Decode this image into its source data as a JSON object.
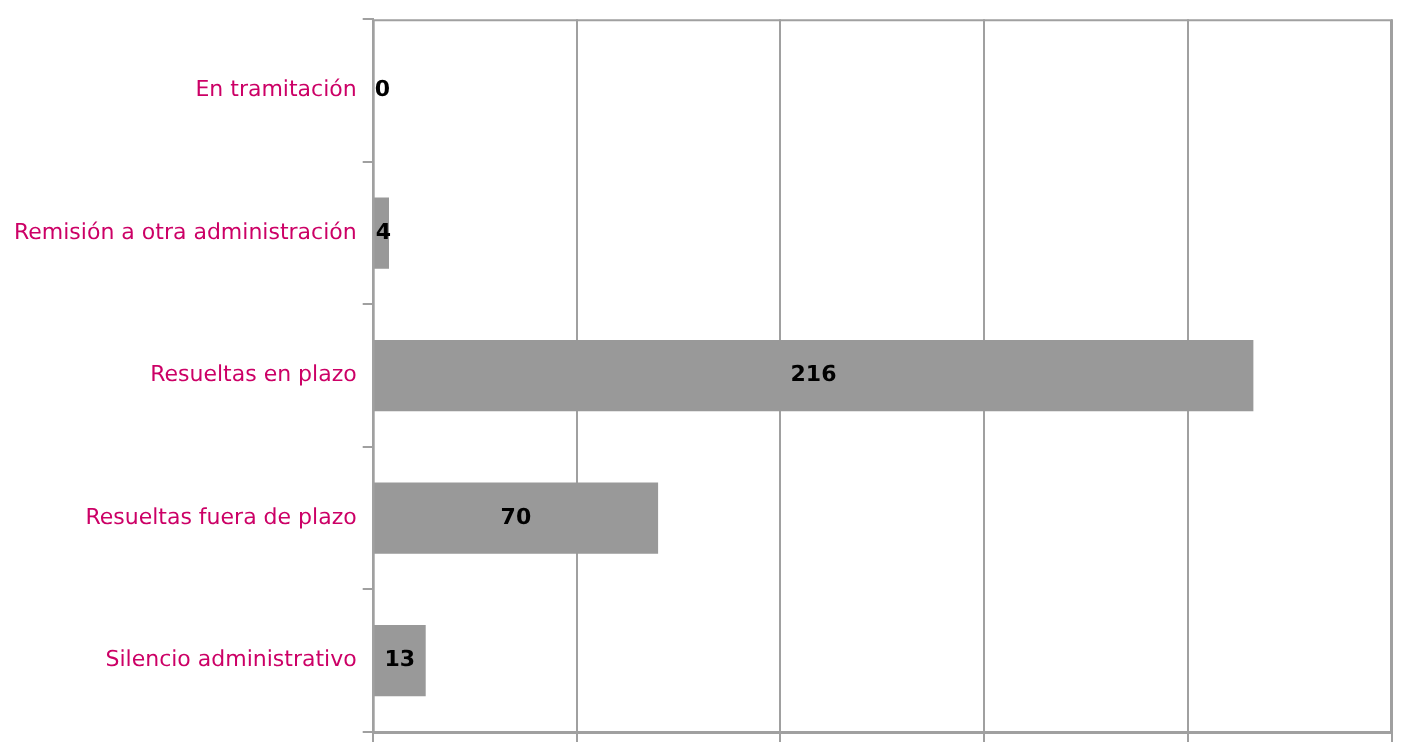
{
  "chart_data": {
    "type": "bar",
    "orientation": "horizontal",
    "categories": [
      "En tramitación",
      "Remisión a otra administración",
      "Resueltas en plazo",
      "Resueltas fuera de plazo",
      "Silencio administrativo"
    ],
    "values": [
      0,
      4,
      216,
      70,
      13
    ],
    "color": "#999999",
    "xlim": [
      0,
      250
    ],
    "xticks": [
      {
        "value": 0,
        "label": null
      },
      {
        "value": 50,
        "label": null
      },
      {
        "value": 100,
        "label": null
      },
      {
        "value": 150,
        "label": null
      },
      {
        "value": 200,
        "label": null
      },
      {
        "value": 250,
        "label": null
      }
    ],
    "tick_labels": "y",
    "grid": "x",
    "legend": false,
    "data_labels": true
  }
}
